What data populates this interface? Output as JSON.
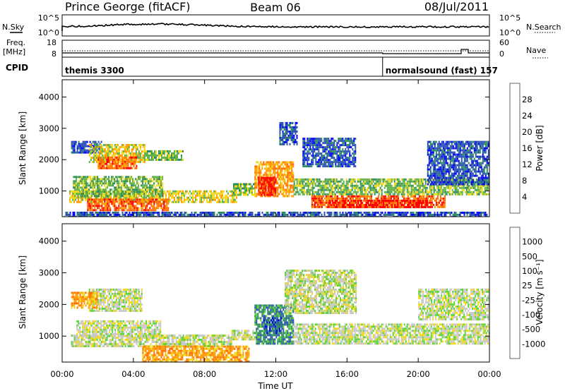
{
  "header": {
    "title": "Prince George (fitACF)",
    "beam": "Beam 06",
    "date": "08/Jul/2011"
  },
  "noise_panel": {
    "left_label": "N.Sky",
    "right_label": "N.Search",
    "left_ticks": [
      "10^5",
      "10^0"
    ],
    "right_ticks": [
      "10^5",
      "10^0"
    ]
  },
  "freq_panel": {
    "left_label_1": "Freq.",
    "left_label_2": "[MHz]",
    "right_label": "Nave",
    "left_ticks": [
      "18",
      "8"
    ],
    "right_ticks": [
      "60",
      "0"
    ]
  },
  "cpid_panel": {
    "label": "CPID",
    "modes": [
      {
        "name": "themis 3300",
        "start_hour": 0
      },
      {
        "name": "normalsound (fast) 157",
        "start_hour": 18
      }
    ]
  },
  "time_axis": {
    "label": "Time UT",
    "ticks": [
      "00:00",
      "04:00",
      "08:00",
      "12:00",
      "16:00",
      "20:00",
      "00:00"
    ],
    "tick_hours": [
      0,
      4,
      8,
      12,
      16,
      20,
      24
    ]
  },
  "colors": {
    "frame": "#000000",
    "mode_divider": "#bbbbbb"
  },
  "chart_data": [
    {
      "type": "heatmap",
      "parameter": "power",
      "ylabel": "Slant Range [km]",
      "yticks": [
        1000,
        2000,
        3000,
        4000
      ],
      "ylim": [
        180,
        4550
      ],
      "xlim": [
        0,
        24
      ],
      "colorbar": {
        "label": "Power [dB]",
        "ticks": [
          "28",
          "24",
          "20",
          "16",
          "12",
          "8",
          "4"
        ],
        "colors": [
          "#0000ff",
          "#2b4fb5",
          "#2d8d60",
          "#5fb14a",
          "#f0d81a",
          "#ff9a00",
          "#ff6a00",
          "#ff0000"
        ]
      },
      "regions": [
        {
          "t0": 0.1,
          "t1": 23.9,
          "r0": 200,
          "r1": 340,
          "level": 1
        },
        {
          "t0": 0.4,
          "t1": 9.8,
          "r0": 660,
          "r1": 1020,
          "level": 4
        },
        {
          "t0": 0.6,
          "t1": 5.6,
          "r0": 820,
          "r1": 1480,
          "level": 3
        },
        {
          "t0": 1.4,
          "t1": 6.0,
          "r0": 380,
          "r1": 760,
          "level": 6
        },
        {
          "t0": 0.5,
          "t1": 2.2,
          "r0": 2250,
          "r1": 2600,
          "level": 1
        },
        {
          "t0": 1.5,
          "t1": 4.6,
          "r0": 1950,
          "r1": 2500,
          "level": 4
        },
        {
          "t0": 2.0,
          "t1": 4.2,
          "r0": 1750,
          "r1": 2100,
          "level": 6
        },
        {
          "t0": 4.6,
          "t1": 6.8,
          "r0": 2000,
          "r1": 2300,
          "level": 3
        },
        {
          "t0": 9.6,
          "t1": 10.8,
          "r0": 900,
          "r1": 1250,
          "level": 3
        },
        {
          "t0": 10.8,
          "t1": 13.0,
          "r0": 850,
          "r1": 1950,
          "level": 5
        },
        {
          "t0": 11.0,
          "t1": 12.0,
          "r0": 900,
          "r1": 1450,
          "level": 7
        },
        {
          "t0": 12.2,
          "t1": 13.2,
          "r0": 2500,
          "r1": 3200,
          "level": 1
        },
        {
          "t0": 13.0,
          "t1": 24.0,
          "r0": 900,
          "r1": 1400,
          "level": 3
        },
        {
          "t0": 14.0,
          "t1": 21.5,
          "r0": 480,
          "r1": 860,
          "level": 6
        },
        {
          "t0": 15.0,
          "t1": 20.5,
          "r0": 450,
          "r1": 720,
          "level": 7
        },
        {
          "t0": 13.5,
          "t1": 16.5,
          "r0": 1800,
          "r1": 2700,
          "level": 1
        },
        {
          "t0": 20.5,
          "t1": 24.0,
          "r0": 1200,
          "r1": 2600,
          "level": 1
        }
      ]
    },
    {
      "type": "heatmap",
      "parameter": "velocity",
      "ylabel": "Slant Range [km]",
      "yticks": [
        1000,
        2000,
        3000,
        4000
      ],
      "ylim": [
        180,
        4550
      ],
      "xlim": [
        0,
        24
      ],
      "colorbar": {
        "label": "Velocity [m s⁻¹]",
        "ticks": [
          "1000",
          "500",
          "100",
          "25",
          "-25",
          "-100",
          "-500",
          "-1000"
        ],
        "colors": [
          "#ff0000",
          "#ff6a00",
          "#ff9a00",
          "#f0d81a",
          "#c8c8c8",
          "#5fd23a",
          "#2d8d60",
          "#2b4fb5",
          "#0000ff"
        ]
      },
      "regions": [
        {
          "t0": 0.5,
          "t1": 9.5,
          "r0": 700,
          "r1": 1050,
          "level": 4
        },
        {
          "t0": 0.8,
          "t1": 5.5,
          "r0": 1000,
          "r1": 1500,
          "level": 4
        },
        {
          "t0": 1.5,
          "t1": 4.5,
          "r0": 1800,
          "r1": 2500,
          "level": 4
        },
        {
          "t0": 0.5,
          "t1": 2.0,
          "r0": 1900,
          "r1": 2400,
          "level": 2
        },
        {
          "t0": 4.5,
          "t1": 10.5,
          "r0": 200,
          "r1": 700,
          "level": 2
        },
        {
          "t0": 9.5,
          "t1": 10.8,
          "r0": 880,
          "r1": 1200,
          "level": 4
        },
        {
          "t0": 10.8,
          "t1": 13.0,
          "r0": 780,
          "r1": 2000,
          "level": 6
        },
        {
          "t0": 11.3,
          "t1": 12.3,
          "r0": 1100,
          "r1": 1600,
          "level": 7
        },
        {
          "t0": 12.5,
          "t1": 16.5,
          "r0": 1700,
          "r1": 3100,
          "level": 4
        },
        {
          "t0": 13.0,
          "t1": 24.0,
          "r0": 750,
          "r1": 1400,
          "level": 4
        },
        {
          "t0": 20.0,
          "t1": 24.0,
          "r0": 1500,
          "r1": 2500,
          "level": 4
        }
      ]
    }
  ]
}
